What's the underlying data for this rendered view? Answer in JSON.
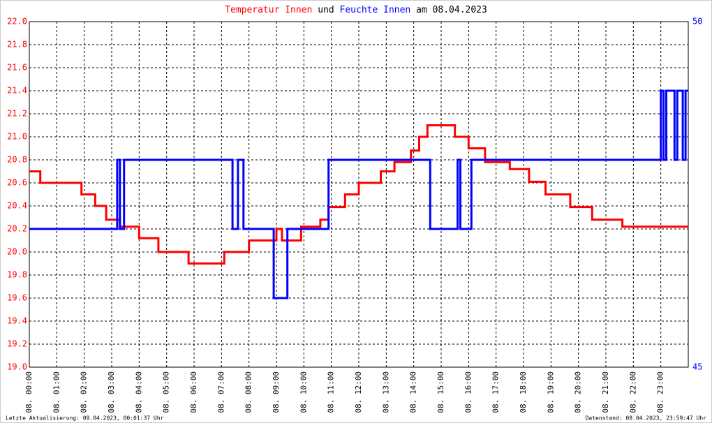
{
  "chart_data": {
    "type": "line",
    "title_connector": "und",
    "title_suffix": "am 08.04.2023",
    "footer_left": "Letzte Aktualisierung: 09.04.2023, 00:01:37 Uhr",
    "footer_right": "Datenstand: 08.04.2023, 23:59:47 Uhr",
    "grid": true,
    "xlim": [
      0,
      24
    ],
    "xticks": [
      {
        "value": 0,
        "label": "08. 00:00"
      },
      {
        "value": 1,
        "label": "08. 01:00"
      },
      {
        "value": 2,
        "label": "08. 02:00"
      },
      {
        "value": 3,
        "label": "08. 03:00"
      },
      {
        "value": 4,
        "label": "08. 04:00"
      },
      {
        "value": 5,
        "label": "08. 05:00"
      },
      {
        "value": 6,
        "label": "08. 06:00"
      },
      {
        "value": 7,
        "label": "08. 07:00"
      },
      {
        "value": 8,
        "label": "08. 08:00"
      },
      {
        "value": 9,
        "label": "08. 09:00"
      },
      {
        "value": 10,
        "label": "08. 10:00"
      },
      {
        "value": 11,
        "label": "08. 11:00"
      },
      {
        "value": 12,
        "label": "08. 12:00"
      },
      {
        "value": 13,
        "label": "08. 13:00"
      },
      {
        "value": 14,
        "label": "08. 14:00"
      },
      {
        "value": 15,
        "label": "08. 15:00"
      },
      {
        "value": 16,
        "label": "08. 16:00"
      },
      {
        "value": 17,
        "label": "08. 17:00"
      },
      {
        "value": 18,
        "label": "08. 18:00"
      },
      {
        "value": 19,
        "label": "08. 19:00"
      },
      {
        "value": 20,
        "label": "08. 20:00"
      },
      {
        "value": 21,
        "label": "08. 21:00"
      },
      {
        "value": 22,
        "label": "08. 22:00"
      },
      {
        "value": 23,
        "label": "08. 23:00"
      }
    ],
    "ylim": [
      19,
      22
    ],
    "yticks": [
      {
        "value": 19,
        "label": "19.0"
      },
      19.2,
      19.4,
      19.6,
      19.8,
      {
        "value": 20,
        "label": "20.0"
      },
      20.2,
      20.4,
      20.6,
      20.8,
      {
        "value": 21,
        "label": "21.0"
      },
      21.2,
      21.4,
      21.6,
      21.8,
      {
        "value": 22,
        "label": "22.0"
      }
    ],
    "y_tick_color": "#ff0000",
    "y2lim": [
      45,
      50
    ],
    "y2ticks": [
      45,
      50
    ],
    "y2_tick_color": "#0000ff",
    "series": [
      {
        "name": "Temperatur Innen",
        "color": "#ff0000",
        "x": [
          0,
          0.4,
          0.4,
          1.9,
          1.9,
          2.4,
          2.4,
          2.8,
          2.8,
          3.3,
          3.3,
          4.0,
          4.0,
          4.7,
          4.7,
          5.8,
          5.8,
          7.1,
          7.1,
          8.0,
          8.0,
          9.0,
          9.0,
          9.2,
          9.2,
          9.9,
          9.9,
          10.6,
          10.6,
          10.9,
          10.9,
          11.5,
          11.5,
          12.0,
          12.0,
          12.8,
          12.8,
          13.3,
          13.3,
          13.9,
          13.9,
          14.2,
          14.2,
          14.5,
          14.5,
          15.5,
          15.5,
          16.0,
          16.0,
          16.6,
          16.6,
          17.5,
          17.5,
          18.2,
          18.2,
          18.8,
          18.8,
          19.7,
          19.7,
          20.5,
          20.5,
          21.6,
          21.6,
          24
        ],
        "values": [
          20.7,
          20.7,
          20.6,
          20.6,
          20.5,
          20.5,
          20.4,
          20.4,
          20.28,
          20.28,
          20.22,
          20.22,
          20.12,
          20.12,
          20.0,
          20.0,
          19.9,
          19.9,
          20.0,
          20.0,
          20.1,
          20.1,
          20.2,
          20.2,
          20.1,
          20.1,
          20.22,
          20.22,
          20.28,
          20.28,
          20.39,
          20.39,
          20.5,
          20.5,
          20.6,
          20.6,
          20.7,
          20.7,
          20.78,
          20.78,
          20.88,
          20.88,
          21.0,
          21.0,
          21.1,
          21.1,
          21.0,
          21.0,
          20.9,
          20.9,
          20.78,
          20.78,
          20.72,
          20.72,
          20.61,
          20.61,
          20.5,
          20.5,
          20.39,
          20.39,
          20.28,
          20.28,
          20.22,
          20.22
        ]
      },
      {
        "name": "Feuchte Innen",
        "color": "#0000ff",
        "axis": "y2",
        "x": [
          0,
          3.2,
          3.2,
          3.3,
          3.3,
          3.45,
          3.45,
          7.4,
          7.4,
          7.6,
          7.6,
          7.8,
          7.8,
          8.9,
          8.9,
          9.4,
          9.4,
          10.9,
          10.9,
          14.6,
          14.6,
          15.6,
          15.6,
          15.7,
          15.7,
          16.1,
          16.1,
          23.0,
          23.0,
          23.1,
          23.1,
          23.2,
          23.2,
          23.5,
          23.5,
          23.6,
          23.6,
          23.8,
          23.8,
          23.9,
          23.9,
          24
        ],
        "values": [
          47,
          47,
          48,
          48,
          47,
          47,
          48,
          48,
          47,
          47,
          48,
          48,
          47,
          47,
          46,
          46,
          47,
          47,
          48,
          48,
          47,
          47,
          48,
          48,
          47,
          47,
          48,
          48,
          49,
          49,
          48,
          48,
          49,
          49,
          48,
          48,
          49,
          49,
          48,
          48,
          49,
          49
        ]
      }
    ]
  }
}
